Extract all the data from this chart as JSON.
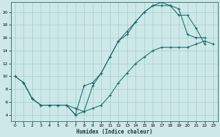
{
  "xlabel": "Humidex (Indice chaleur)",
  "bg_color": "#cde8e8",
  "grid_color": "#aacfcf",
  "line_color": "#1a6b6b",
  "xlim": [
    -0.5,
    23.5
  ],
  "ylim": [
    3,
    21.5
  ],
  "xticks": [
    0,
    1,
    2,
    3,
    4,
    5,
    6,
    7,
    8,
    9,
    10,
    11,
    12,
    13,
    14,
    15,
    16,
    17,
    18,
    19,
    20,
    21,
    22,
    23
  ],
  "yticks": [
    4,
    6,
    8,
    10,
    12,
    14,
    16,
    18,
    20
  ],
  "line1_x": [
    0,
    1,
    2,
    3,
    4,
    5,
    6,
    7,
    8,
    9,
    10,
    11,
    12,
    13,
    14,
    15,
    16,
    17,
    18,
    19,
    20,
    21,
    22
  ],
  "line1_y": [
    10,
    9,
    6.5,
    5.5,
    5.5,
    5.5,
    5.5,
    4.0,
    8.5,
    9.0,
    10.5,
    13,
    15.5,
    17,
    18.5,
    20,
    21.0,
    21.0,
    21.0,
    20.5,
    16.5,
    16.0,
    16.0
  ],
  "line2_x": [
    1,
    2,
    3,
    4,
    5,
    6,
    7,
    8,
    9,
    10,
    11,
    12,
    13,
    14,
    15,
    16,
    17,
    18,
    19,
    20,
    21,
    22
  ],
  "line2_y": [
    9,
    6.5,
    5.5,
    5.5,
    5.5,
    5.5,
    5.0,
    4.5,
    8.5,
    10.5,
    13,
    15.5,
    16.5,
    18.5,
    20.0,
    21.0,
    21.5,
    21.0,
    19.5,
    19.5,
    17.5,
    15.0
  ],
  "line3_x": [
    0,
    1,
    2,
    3,
    4,
    5,
    6,
    7,
    8,
    9,
    10,
    11,
    12,
    13,
    14,
    15,
    16,
    17,
    18,
    19,
    20,
    21,
    22,
    23
  ],
  "line3_y": [
    10,
    9.0,
    6.5,
    5.5,
    5.5,
    5.5,
    5.5,
    4.0,
    4.5,
    5.0,
    5.5,
    7.0,
    9.0,
    10.5,
    12.0,
    13.0,
    14.0,
    14.5,
    14.5,
    14.5,
    14.5,
    15.0,
    15.5,
    15.0
  ]
}
